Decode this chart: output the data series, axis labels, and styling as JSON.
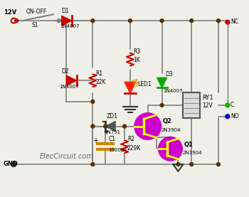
{
  "bg_color": "#f0f0e8",
  "wire_color": "#808080",
  "node_color": "#5a3000",
  "watermark": "ElecCircuit.com",
  "gnd_label": "GND",
  "v12": "12V",
  "sw_label": "ON-OFF",
  "sw_sub": "S1",
  "d1_label": "D1",
  "d1_sub": "1N4007",
  "d2_label": "D2",
  "d2_sub": "1N4007",
  "d3_label": "D3",
  "d3_sub": "1N4007",
  "zd1_label": "ZD1",
  "zd1_sub": "1N751",
  "led_label": "LED1",
  "r1_label": "R1",
  "r1_sub": "22K",
  "r2_label": "R2",
  "r2_sub": "229K",
  "r3_label": "R3",
  "r3_sub": "1K",
  "c1_label": "C1",
  "c1_sub": "1000μF",
  "q1_label": "Q1",
  "q1_sub": "2N3904",
  "q2_label": "Q2",
  "q2_sub": "2N3904",
  "ry1_label": "RY1",
  "ry1_sub": "12V",
  "nc_label": "NC",
  "c_label": "C",
  "no_label": "NO",
  "trans_color": "#cc00cc",
  "res_color": "#cc0000",
  "diode_red": "#cc0000",
  "diode_green": "#00aa00",
  "cap_color": "#cc8800"
}
